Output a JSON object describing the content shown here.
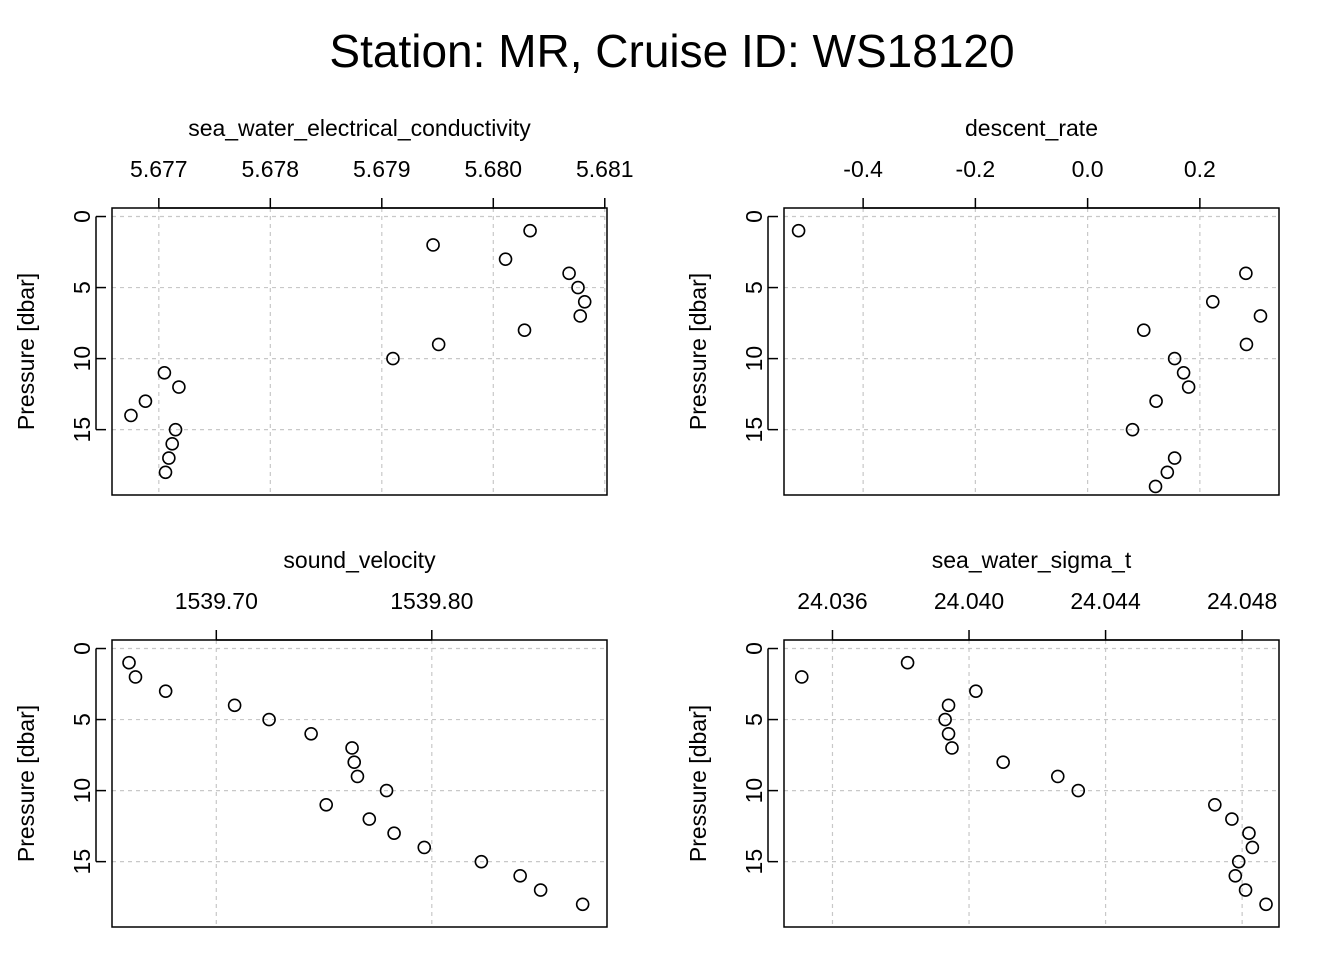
{
  "title": "Station: MR, Cruise ID: WS18120",
  "chart_data": [
    {
      "type": "scatter",
      "title": "sea_water_electrical_conductivity",
      "ylabel": "Pressure [dbar]",
      "xticks": [
        "5.677",
        "5.678",
        "5.679",
        "5.680",
        "5.681"
      ],
      "xtick_values": [
        5.677,
        5.678,
        5.679,
        5.68,
        5.681
      ],
      "xlim": [
        5.67658,
        5.68102
      ],
      "yticks": [
        "0",
        "5",
        "10",
        "15"
      ],
      "ytick_values": [
        0,
        5,
        10,
        15
      ],
      "ylim": [
        19.6,
        -0.6
      ],
      "grid": true,
      "points": [
        {
          "x": 5.68033,
          "y": 1
        },
        {
          "x": 5.67946,
          "y": 2
        },
        {
          "x": 5.68011,
          "y": 3
        },
        {
          "x": 5.68068,
          "y": 4
        },
        {
          "x": 5.68076,
          "y": 5
        },
        {
          "x": 5.68082,
          "y": 6
        },
        {
          "x": 5.68078,
          "y": 7
        },
        {
          "x": 5.68028,
          "y": 8
        },
        {
          "x": 5.67951,
          "y": 9
        },
        {
          "x": 5.6791,
          "y": 10
        },
        {
          "x": 5.67705,
          "y": 11
        },
        {
          "x": 5.67718,
          "y": 12
        },
        {
          "x": 5.67688,
          "y": 13
        },
        {
          "x": 5.67675,
          "y": 14
        },
        {
          "x": 5.67715,
          "y": 15
        },
        {
          "x": 5.67712,
          "y": 16
        },
        {
          "x": 5.67709,
          "y": 17
        },
        {
          "x": 5.67706,
          "y": 18
        }
      ]
    },
    {
      "type": "scatter",
      "title": "descent_rate",
      "ylabel": "Pressure [dbar]",
      "xticks": [
        "-0.4",
        "-0.2",
        "0.0",
        "0.2"
      ],
      "xtick_values": [
        -0.4,
        -0.2,
        0.0,
        0.2
      ],
      "xlim": [
        -0.541,
        0.341
      ],
      "yticks": [
        "0",
        "5",
        "10",
        "15"
      ],
      "ytick_values": [
        0,
        5,
        10,
        15
      ],
      "ylim": [
        19.6,
        -0.6
      ],
      "grid": true,
      "points": [
        {
          "x": -0.515,
          "y": 1
        },
        {
          "x": 0.282,
          "y": 4
        },
        {
          "x": 0.223,
          "y": 6
        },
        {
          "x": 0.308,
          "y": 7
        },
        {
          "x": 0.1,
          "y": 8
        },
        {
          "x": 0.283,
          "y": 9
        },
        {
          "x": 0.155,
          "y": 10
        },
        {
          "x": 0.171,
          "y": 11
        },
        {
          "x": 0.18,
          "y": 12
        },
        {
          "x": 0.122,
          "y": 13
        },
        {
          "x": 0.08,
          "y": 15
        },
        {
          "x": 0.155,
          "y": 17
        },
        {
          "x": 0.142,
          "y": 18
        },
        {
          "x": 0.121,
          "y": 19
        }
      ]
    },
    {
      "type": "scatter",
      "title": "sound_velocity",
      "ylabel": "Pressure [dbar]",
      "xticks": [
        "1539.70",
        "1539.80"
      ],
      "xtick_values": [
        1539.7,
        1539.8
      ],
      "xlim": [
        1539.6516,
        1539.8813
      ],
      "yticks": [
        "0",
        "5",
        "10",
        "15"
      ],
      "ytick_values": [
        0,
        5,
        10,
        15
      ],
      "ylim": [
        19.6,
        -0.6
      ],
      "grid": true,
      "points": [
        {
          "x": 1539.6595,
          "y": 1
        },
        {
          "x": 1539.6625,
          "y": 2
        },
        {
          "x": 1539.6765,
          "y": 3
        },
        {
          "x": 1539.7085,
          "y": 4
        },
        {
          "x": 1539.7245,
          "y": 5
        },
        {
          "x": 1539.744,
          "y": 6
        },
        {
          "x": 1539.763,
          "y": 7
        },
        {
          "x": 1539.764,
          "y": 8
        },
        {
          "x": 1539.7655,
          "y": 9
        },
        {
          "x": 1539.779,
          "y": 10
        },
        {
          "x": 1539.751,
          "y": 11
        },
        {
          "x": 1539.771,
          "y": 12
        },
        {
          "x": 1539.7825,
          "y": 13
        },
        {
          "x": 1539.7965,
          "y": 14
        },
        {
          "x": 1539.823,
          "y": 15
        },
        {
          "x": 1539.841,
          "y": 16
        },
        {
          "x": 1539.8505,
          "y": 17
        },
        {
          "x": 1539.87,
          "y": 18
        }
      ]
    },
    {
      "type": "scatter",
      "title": "sea_water_sigma_t",
      "ylabel": "Pressure [dbar]",
      "xticks": [
        "24.036",
        "24.040",
        "24.044",
        "24.048"
      ],
      "xtick_values": [
        24.036,
        24.04,
        24.044,
        24.048
      ],
      "xlim": [
        24.03458,
        24.04908
      ],
      "yticks": [
        "0",
        "5",
        "10",
        "15"
      ],
      "ytick_values": [
        0,
        5,
        10,
        15
      ],
      "ylim": [
        19.6,
        -0.6
      ],
      "grid": true,
      "points": [
        {
          "x": 24.0382,
          "y": 1
        },
        {
          "x": 24.0351,
          "y": 2
        },
        {
          "x": 24.0402,
          "y": 3
        },
        {
          "x": 24.0394,
          "y": 4
        },
        {
          "x": 24.0393,
          "y": 5
        },
        {
          "x": 24.0394,
          "y": 6
        },
        {
          "x": 24.0395,
          "y": 7
        },
        {
          "x": 24.041,
          "y": 8
        },
        {
          "x": 24.0426,
          "y": 9
        },
        {
          "x": 24.0432,
          "y": 10
        },
        {
          "x": 24.0472,
          "y": 11
        },
        {
          "x": 24.0477,
          "y": 12
        },
        {
          "x": 24.0482,
          "y": 13
        },
        {
          "x": 24.0483,
          "y": 14
        },
        {
          "x": 24.0479,
          "y": 15
        },
        {
          "x": 24.0478,
          "y": 16
        },
        {
          "x": 24.0481,
          "y": 17
        },
        {
          "x": 24.0487,
          "y": 18
        }
      ]
    }
  ]
}
